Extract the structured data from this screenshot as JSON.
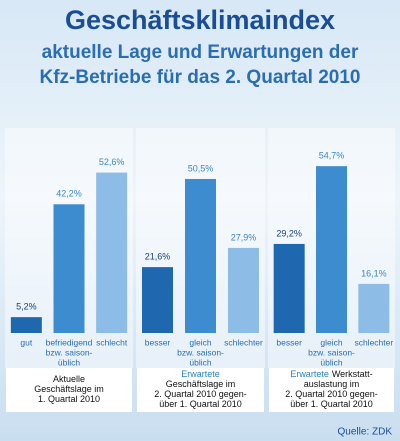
{
  "chart_data": {
    "type": "bar",
    "title": "Geschäftsklimaindex",
    "subtitle": [
      "aktuelle Lage und Erwartungen der",
      "Kfz-Betriebe für das 2. Quartal 2010"
    ],
    "source": "Quelle: ZDK",
    "panels": [
      {
        "categories": [
          [
            "gut"
          ],
          [
            "befriedigend",
            "bzw. saison-",
            "üblich"
          ],
          [
            "schlecht"
          ]
        ],
        "values": [
          5.2,
          42.2,
          52.6
        ],
        "value_labels": [
          "5,2%",
          "42,2%",
          "52,6%"
        ],
        "colors": [
          "#1f68b0",
          "#3d8ccf",
          "#8dbde6"
        ],
        "caption": [
          [
            {
              "text": "Aktuelle"
            }
          ],
          [
            {
              "text": "Geschäftslage im"
            }
          ],
          [
            {
              "text": "1. Quartal 2010"
            }
          ]
        ]
      },
      {
        "categories": [
          [
            "besser"
          ],
          [
            "gleich",
            "bzw. saison-",
            "üblich"
          ],
          [
            "schlechter"
          ]
        ],
        "values": [
          21.6,
          50.5,
          27.9
        ],
        "value_labels": [
          "21,6%",
          "50,5%",
          "27,9%"
        ],
        "colors": [
          "#1f68b0",
          "#3d8ccf",
          "#8dbde6"
        ],
        "caption": [
          [
            {
              "text": "Erwartete",
              "color": "#2a7fc4"
            }
          ],
          [
            {
              "text": "Geschäftslage im"
            }
          ],
          [
            {
              "text": "2. Quartal 2010 gegen-"
            }
          ],
          [
            {
              "text": "über 1. Quartal 2010"
            }
          ]
        ]
      },
      {
        "categories": [
          [
            "besser"
          ],
          [
            "gleich",
            "bzw. saison-",
            "üblich"
          ],
          [
            "schlechter"
          ]
        ],
        "values": [
          29.2,
          54.7,
          16.1
        ],
        "value_labels": [
          "29,2%",
          "54,7%",
          "16,1%"
        ],
        "colors": [
          "#1f68b0",
          "#3d8ccf",
          "#8dbde6"
        ],
        "caption": [
          [
            {
              "text": "Erwartete",
              "color": "#2a7fc4"
            },
            {
              "text": "Werkstatt-"
            }
          ],
          [
            {
              "text": "auslastung im"
            }
          ],
          [
            {
              "text": "2. Quartal 2010 gegen-"
            }
          ],
          [
            {
              "text": "über 1. Quartal 2010"
            }
          ]
        ]
      }
    ]
  }
}
